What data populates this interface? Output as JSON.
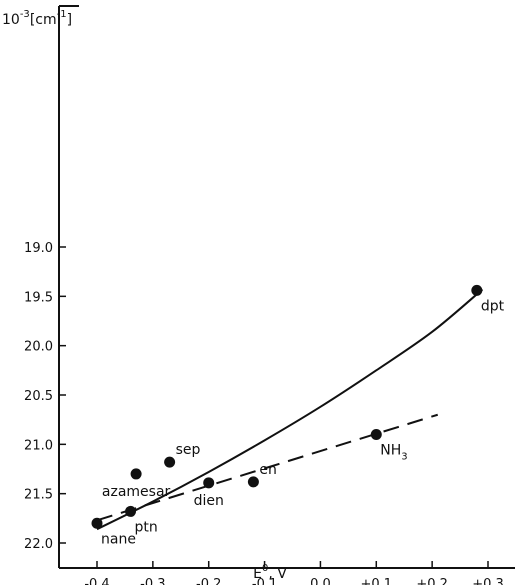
{
  "chart_data": {
    "type": "scatter",
    "title": "",
    "xlabel": "E",
    "xlabel_sup": "0",
    "xlabel_unit": ", V",
    "ylabel": "10",
    "ylabel_sup": "-3",
    "ylabel_unit": "[cm",
    "ylabel_unit_sup": "-1",
    "ylabel_unit_close": "]",
    "xlim": [
      -0.42,
      0.32
    ],
    "ylim": [
      18.45,
      22.22
    ],
    "y_inverted": true,
    "grid": false,
    "x_ticks": [
      {
        "value": -0.4,
        "label": "-0.4"
      },
      {
        "value": -0.3,
        "label": "-0.3"
      },
      {
        "value": -0.2,
        "label": "-0.2"
      },
      {
        "value": -0.1,
        "label": "-0.1"
      },
      {
        "value": 0.0,
        "label": "0.0"
      },
      {
        "value": 0.1,
        "label": "+0.1"
      },
      {
        "value": 0.2,
        "label": "+0.2"
      },
      {
        "value": 0.3,
        "label": "+0.3"
      }
    ],
    "y_ticks": [
      {
        "value": 19.0,
        "label": "19.0"
      },
      {
        "value": 19.5,
        "label": "19.5"
      },
      {
        "value": 20.0,
        "label": "20.0"
      },
      {
        "value": 20.5,
        "label": "20.5"
      },
      {
        "value": 21.0,
        "label": "21.0"
      },
      {
        "value": 21.5,
        "label": "21.5"
      },
      {
        "value": 22.0,
        "label": "22.0"
      }
    ],
    "points": [
      {
        "label": "nane",
        "x": -0.4,
        "y": 21.8,
        "label_pos": "below-right"
      },
      {
        "label": "ptn",
        "x": -0.34,
        "y": 21.68,
        "label_pos": "below-right"
      },
      {
        "label": "azamesar",
        "x": -0.33,
        "y": 21.3,
        "label_pos": "below"
      },
      {
        "label": "sep",
        "x": -0.27,
        "y": 21.18,
        "label_pos": "above-right"
      },
      {
        "label": "dien",
        "x": -0.2,
        "y": 21.39,
        "label_pos": "below"
      },
      {
        "label": "en",
        "x": -0.12,
        "y": 21.38,
        "label_pos": "above-right"
      },
      {
        "label": "NH",
        "label_sub": "3",
        "x": 0.1,
        "y": 20.9,
        "label_pos": "below-right"
      },
      {
        "label": "dpt",
        "x": 0.28,
        "y": 19.44,
        "label_pos": "below-right"
      }
    ],
    "series": [
      {
        "style": "solid",
        "kind": "curve",
        "x": [
          -0.4,
          -0.3,
          -0.2,
          -0.1,
          0.0,
          0.1,
          0.2,
          0.29
        ],
        "y": [
          21.86,
          21.58,
          21.28,
          20.96,
          20.62,
          20.25,
          19.86,
          19.43
        ]
      },
      {
        "style": "dashed",
        "kind": "line",
        "x": [
          -0.4,
          0.21
        ],
        "y": [
          21.77,
          20.7
        ]
      }
    ]
  }
}
